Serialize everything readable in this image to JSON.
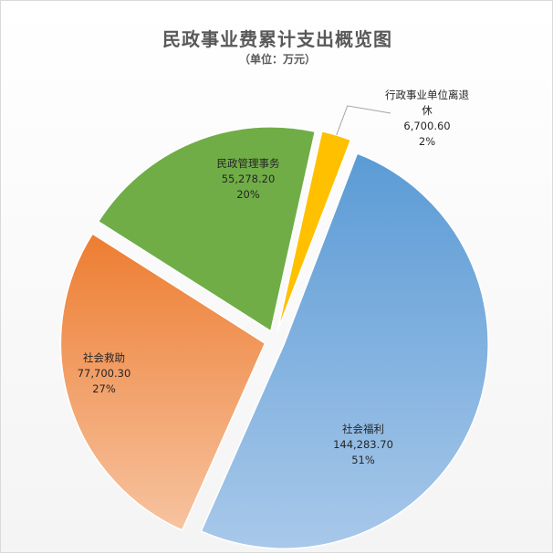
{
  "chart_data": {
    "type": "pie",
    "title": "民政事业费累计支出概览图",
    "subtitle": "（单位：万元）",
    "slices": [
      {
        "label": "社会福利",
        "value_text": "144,283.70",
        "percent_text": "51%",
        "value": 144283.7,
        "color_light": "#a8c8ea",
        "color_dark": "#5b9bd5"
      },
      {
        "label": "社会救助",
        "value_text": "77,700.30",
        "percent_text": "27%",
        "value": 77700.3,
        "color_light": "#f7c3a0",
        "color_dark": "#ed7d31"
      },
      {
        "label": "民政管理事务",
        "value_text": "55,278.20",
        "percent_text": "20%",
        "value": 55278.2,
        "color_light": "#70ad47",
        "color_dark": "#70ad47"
      },
      {
        "label": "行政事业单位离退休",
        "value_text": "6,700.60",
        "percent_text": "2%",
        "value": 6700.6,
        "color_light": "#ffc000",
        "color_dark": "#ffc000"
      }
    ]
  }
}
